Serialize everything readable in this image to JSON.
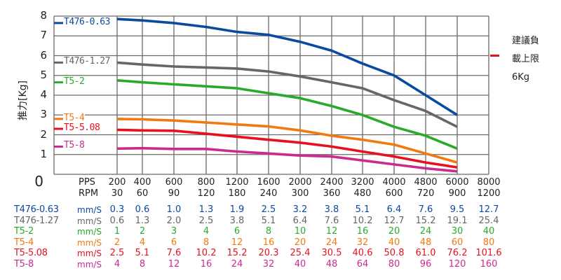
{
  "chart_data": {
    "type": "line",
    "title": "",
    "ylabel": "推力[Kg]",
    "xlabel": "PPS / RPM",
    "ylim": [
      0,
      8
    ],
    "yticks": [
      "0",
      "1",
      "2",
      "3",
      "4",
      "5",
      "6",
      "7",
      "8"
    ],
    "grid": true,
    "x_header": {
      "pps": "PPS",
      "rpm": "RPM"
    },
    "categories": [
      "200",
      "400",
      "600",
      "800",
      "1200",
      "1600",
      "2000",
      "2400",
      "3200",
      "4000",
      "4800",
      "6000",
      "8000"
    ],
    "rpm": [
      "30",
      "60",
      "90",
      "120",
      "180",
      "240",
      "300",
      "360",
      "480",
      "600",
      "720",
      "900",
      "1200"
    ],
    "series": [
      {
        "name": "T476-0.63",
        "color": "#0a4aa0",
        "values": [
          7.85,
          7.78,
          7.65,
          7.45,
          7.2,
          7.05,
          6.7,
          6.25,
          5.6,
          5.0,
          4.0,
          3.0
        ]
      },
      {
        "name": "T476-1.27",
        "color": "#666666",
        "values": [
          5.65,
          5.55,
          5.45,
          5.4,
          5.35,
          5.2,
          4.95,
          4.65,
          4.35,
          3.75,
          3.2,
          2.4
        ]
      },
      {
        "name": "T5-2",
        "color": "#2aaa2a",
        "values": [
          4.75,
          4.65,
          4.55,
          4.45,
          4.35,
          4.1,
          3.85,
          3.45,
          3.0,
          2.4,
          1.95,
          1.3
        ]
      },
      {
        "name": "T5-4",
        "color": "#f07a10",
        "values": [
          2.8,
          2.78,
          2.72,
          2.62,
          2.52,
          2.42,
          2.22,
          1.95,
          1.75,
          1.5,
          1.05,
          0.6
        ]
      },
      {
        "name": "T5-5.08",
        "color": "#e8101e",
        "values": [
          2.25,
          2.22,
          2.2,
          2.05,
          1.9,
          1.75,
          1.6,
          1.4,
          1.15,
          0.9,
          0.6,
          0.35
        ]
      },
      {
        "name": "T5-8",
        "color": "#cc2a90",
        "values": [
          1.3,
          1.32,
          1.28,
          1.28,
          1.15,
          1.05,
          0.95,
          0.9,
          0.7,
          0.5,
          0.3,
          0.15
        ]
      }
    ],
    "legend": [
      {
        "label": "T476-0.63",
        "y": 7.65
      },
      {
        "label": "T476-1.27",
        "y": 5.65
      },
      {
        "label": "T5-2",
        "y": 4.65
      },
      {
        "label": "T5-4",
        "y": 2.8
      },
      {
        "label": "T5-5.08",
        "y": 2.3
      },
      {
        "label": "T5-8",
        "y": 1.4
      }
    ],
    "annotation": {
      "line1": "建議負",
      "line2": "載上限",
      "line3": "6Kg",
      "value": 6,
      "color": "#e8101e"
    }
  },
  "speed_table": {
    "unit": "mm/S",
    "rows": [
      {
        "name": "T476-0.63",
        "color": "#0a4aa0",
        "values": [
          "0.3",
          "0.6",
          "1.0",
          "1.3",
          "1.9",
          "2.5",
          "3.2",
          "3.8",
          "5.1",
          "6.4",
          "7.6",
          "9.5",
          "12.7"
        ]
      },
      {
        "name": "T476-1.27",
        "color": "#666666",
        "values": [
          "0.6",
          "1.3",
          "2.0",
          "2.5",
          "3.8",
          "5.1",
          "6.4",
          "7.6",
          "10.2",
          "12.7",
          "15.2",
          "19.1",
          "25.4"
        ]
      },
      {
        "name": "T5-2",
        "color": "#2aaa2a",
        "values": [
          "1",
          "2",
          "3",
          "4",
          "6",
          "8",
          "10",
          "12",
          "16",
          "20",
          "24",
          "30",
          "40"
        ]
      },
      {
        "name": "T5-4",
        "color": "#f07a10",
        "values": [
          "2",
          "4",
          "6",
          "8",
          "12",
          "16",
          "20",
          "24",
          "32",
          "40",
          "48",
          "60",
          "80"
        ]
      },
      {
        "name": "T5-5.08",
        "color": "#e8101e",
        "values": [
          "2.5",
          "5.1",
          "7.6",
          "10.2",
          "15.2",
          "20.3",
          "25.4",
          "30.5",
          "40.6",
          "50.8",
          "61.0",
          "76.2",
          "101.6"
        ]
      },
      {
        "name": "T5-8",
        "color": "#cc2a90",
        "values": [
          "4",
          "8",
          "12",
          "16",
          "24",
          "32",
          "40",
          "48",
          "64",
          "80",
          "96",
          "120",
          "160"
        ]
      }
    ]
  }
}
